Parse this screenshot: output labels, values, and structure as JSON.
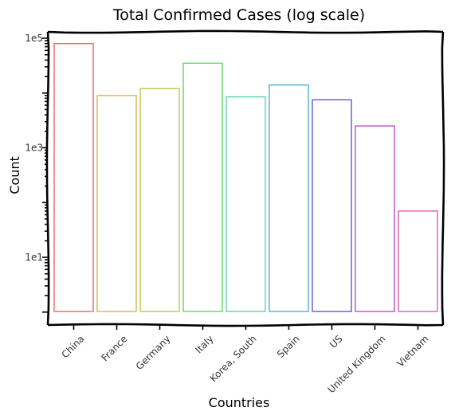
{
  "chart_data": {
    "type": "bar",
    "title": "Total Confirmed Cases (log scale)",
    "xlabel": "Countries",
    "ylabel": "Count",
    "yscale": "log",
    "ylim": [
      1,
      140000
    ],
    "yticks": [
      {
        "value": 10,
        "label": "1e1"
      },
      {
        "value": 1000,
        "label": "1e3"
      },
      {
        "value": 100000,
        "label": "1e5"
      }
    ],
    "categories": [
      "China",
      "France",
      "Germany",
      "Italy",
      "Korea, South",
      "Spain",
      "US",
      "United Kingdom",
      "Vietnam"
    ],
    "values": [
      80000,
      9000,
      12000,
      35000,
      8500,
      14000,
      7500,
      2500,
      70
    ],
    "colors": [
      "#e8676a",
      "#d6b44c",
      "#b8ca4c",
      "#63d36a",
      "#5ed6ae",
      "#4fb0d8",
      "#5a5ad0",
      "#c14dc9",
      "#dc5fb4"
    ],
    "grid": false,
    "legend": "none"
  }
}
